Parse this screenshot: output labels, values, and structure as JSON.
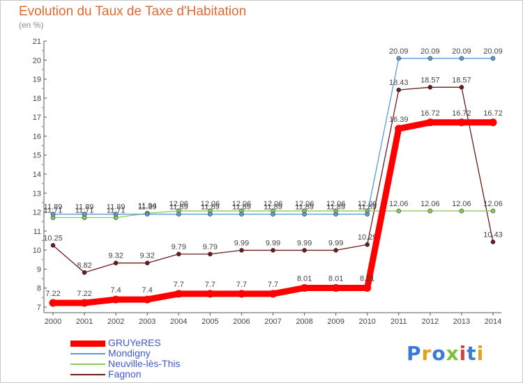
{
  "title": "Evolution du Taux de Taxe d'Habitation",
  "unit_label": "(en %)",
  "logo": {
    "text": "Proxiti",
    "colors": [
      "#3a7bd5",
      "#e0a020",
      "#3a7bd5",
      "#7bbf3a",
      "#d84040",
      "#3a7bd5",
      "#e0a020"
    ]
  },
  "chart_data": {
    "type": "line",
    "title": "Evolution du Taux de Taxe d'Habitation",
    "ylabel": "(en %)",
    "xlabel": "",
    "x": [
      "2000",
      "2001",
      "2002",
      "2003",
      "2004",
      "2005",
      "2006",
      "2007",
      "2008",
      "2009",
      "2010",
      "2011",
      "2012",
      "2013",
      "2014"
    ],
    "y_ticks": [
      "7",
      "8",
      "9",
      "10",
      "11",
      "12",
      "13",
      "14",
      "15",
      "16",
      "17",
      "18",
      "19",
      "20",
      "21"
    ],
    "ylim": [
      7,
      21
    ],
    "grid": false,
    "legend_position": "bottom-left",
    "series": [
      {
        "name": "Fagnon",
        "color": "#6b1a1a",
        "values": [
          10.25,
          8.82,
          9.32,
          9.32,
          9.79,
          9.79,
          9.99,
          9.99,
          9.99,
          9.99,
          10.29,
          18.43,
          18.57,
          18.57,
          10.43
        ],
        "labels": [
          "10.25",
          "8.82",
          "9.32",
          "9.32",
          "9.79",
          "9.79",
          "9.99",
          "9.99",
          "9.99",
          "9.99",
          "10.29",
          "18.43",
          "18.57",
          "18.57",
          "10.43"
        ]
      },
      {
        "name": "Neuville-lès-This",
        "color": "#88cc55",
        "values": [
          11.71,
          11.71,
          11.71,
          11.94,
          12.06,
          12.06,
          12.06,
          12.06,
          12.06,
          12.06,
          12.06,
          12.06,
          12.06,
          12.06,
          12.06
        ],
        "labels": [
          "11.71",
          "11.71",
          "11.71",
          "11.94",
          "12.06",
          "12.06",
          "12.06",
          "12.06",
          "12.06",
          "12.06",
          "12.06",
          "12.06",
          "12.06",
          "12.06",
          "12.06"
        ]
      },
      {
        "name": "Mondigny",
        "color": "#5b9bd5",
        "values": [
          11.89,
          11.89,
          11.89,
          11.89,
          11.89,
          11.89,
          11.89,
          11.89,
          11.89,
          11.89,
          11.89,
          20.09,
          20.09,
          20.09,
          20.09
        ],
        "labels": [
          "11.89",
          "11.89",
          "11.89",
          "11.89",
          "11.89",
          "11.89",
          "11.89",
          "11.89",
          "11.89",
          "11.89",
          "11.89",
          "20.09",
          "20.09",
          "20.09",
          "20.09"
        ]
      },
      {
        "name": "GRUYeRES",
        "color": "#ff0000",
        "values": [
          7.22,
          7.22,
          7.4,
          7.4,
          7.7,
          7.7,
          7.7,
          7.7,
          8.01,
          8.01,
          8.01,
          16.39,
          16.72,
          16.72,
          16.72
        ],
        "labels": [
          "7.22",
          "7.22",
          "7.4",
          "7.4",
          "7.7",
          "7.7",
          "7.7",
          "7.7",
          "8.01",
          "8.01",
          "8.01",
          "16.39",
          "16.72",
          "16.72",
          "16.72"
        ]
      }
    ],
    "legend_order": [
      "GRUYeRES",
      "Mondigny",
      "Neuville-lès-This",
      "Fagnon"
    ]
  }
}
